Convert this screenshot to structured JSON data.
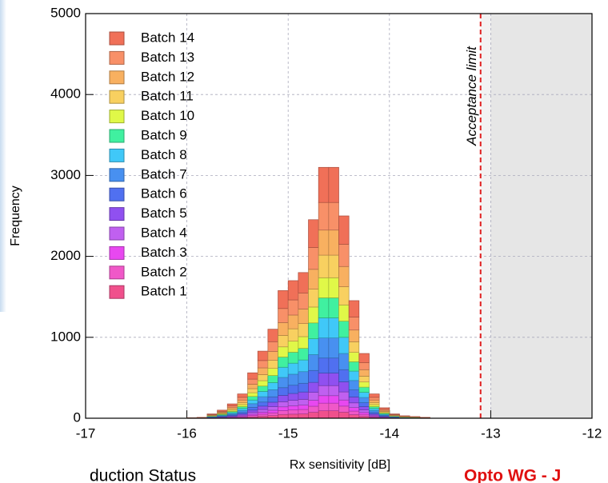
{
  "chart_data": {
    "type": "histogram",
    "xlabel": "Rx sensitivity [dB]",
    "ylabel": "Frequency",
    "xlim": [
      -17,
      -12
    ],
    "xticks": [
      -17,
      -16,
      -15,
      -14,
      -13,
      -12
    ],
    "ylim": [
      0,
      5000
    ],
    "yticks": [
      0,
      1000,
      2000,
      3000,
      4000,
      5000
    ],
    "grid": true,
    "legend": "upper left",
    "bins": [
      -16.0,
      -15.9,
      -15.8,
      -15.7,
      -15.6,
      -15.5,
      -15.4,
      -15.3,
      -15.2,
      -15.1,
      -15.0,
      -14.9,
      -14.8,
      -14.7,
      -14.6,
      -14.5,
      -14.4,
      -14.3,
      -14.2,
      -14.1,
      -14.0,
      -13.9,
      -13.8,
      -13.7,
      -13.6
    ],
    "limit": {
      "value": -13.1,
      "label": "Acceptance limit",
      "color": "#e02020"
    },
    "shade_from": -13,
    "series": [
      {
        "name": "Batch 1",
        "color": "#f0508c",
        "values": [
          0,
          0,
          2,
          3,
          5,
          9,
          17,
          25,
          33,
          47,
          51,
          54,
          74,
          93,
          93,
          75,
          44,
          24,
          9,
          4,
          2,
          1,
          0,
          0
        ]
      },
      {
        "name": "Batch 2",
        "color": "#f058c8",
        "values": [
          0,
          0,
          2,
          3,
          5,
          9,
          17,
          25,
          33,
          47,
          51,
          54,
          74,
          93,
          93,
          75,
          44,
          24,
          9,
          4,
          2,
          1,
          1,
          0
        ]
      },
      {
        "name": "Batch 3",
        "color": "#e848f0",
        "values": [
          0,
          0,
          2,
          3,
          5,
          9,
          17,
          25,
          33,
          47,
          51,
          54,
          74,
          93,
          93,
          75,
          44,
          24,
          9,
          4,
          2,
          1,
          1,
          0
        ]
      },
      {
        "name": "Batch 4",
        "color": "#c060f0",
        "values": [
          0,
          0,
          2,
          4,
          7,
          12,
          22,
          33,
          44,
          63,
          68,
          72,
          98,
          124,
          124,
          100,
          58,
          32,
          12,
          5,
          2,
          1,
          1,
          0
        ]
      },
      {
        "name": "Batch 5",
        "color": "#9050f0",
        "values": [
          0,
          1,
          3,
          5,
          9,
          15,
          28,
          42,
          55,
          79,
          85,
          90,
          123,
          155,
          155,
          125,
          73,
          40,
          15,
          7,
          3,
          2,
          1,
          1
        ]
      },
      {
        "name": "Batch 6",
        "color": "#5070f0",
        "values": [
          0,
          1,
          3,
          6,
          11,
          18,
          34,
          50,
          66,
          95,
          102,
          108,
          147,
          186,
          186,
          150,
          87,
          48,
          18,
          8,
          3,
          2,
          1,
          1
        ]
      },
      {
        "name": "Batch 7",
        "color": "#4890f0",
        "values": [
          1,
          1,
          4,
          8,
          14,
          24,
          45,
          66,
          88,
          126,
          136,
          144,
          196,
          248,
          248,
          200,
          116,
          64,
          24,
          10,
          4,
          2,
          2,
          1
        ]
      },
      {
        "name": "Batch 8",
        "color": "#40c8f8",
        "values": [
          0,
          1,
          4,
          8,
          14,
          24,
          45,
          66,
          88,
          126,
          136,
          144,
          196,
          248,
          248,
          200,
          116,
          64,
          24,
          10,
          4,
          2,
          2,
          1
        ]
      },
      {
        "name": "Batch 9",
        "color": "#40f0a0",
        "values": [
          1,
          1,
          4,
          8,
          14,
          24,
          45,
          66,
          88,
          126,
          136,
          144,
          196,
          248,
          248,
          200,
          116,
          64,
          24,
          10,
          4,
          2,
          2,
          1
        ]
      },
      {
        "name": "Batch 10",
        "color": "#e0f848",
        "values": [
          0,
          1,
          4,
          8,
          14,
          24,
          45,
          66,
          88,
          126,
          136,
          144,
          196,
          248,
          248,
          200,
          116,
          64,
          24,
          10,
          4,
          3,
          2,
          1
        ]
      },
      {
        "name": "Batch 11",
        "color": "#f8d060",
        "values": [
          1,
          1,
          5,
          9,
          16,
          27,
          50,
          75,
          99,
          142,
          153,
          162,
          221,
          279,
          279,
          225,
          131,
          72,
          27,
          12,
          5,
          3,
          2,
          1
        ]
      },
      {
        "name": "Batch 12",
        "color": "#f8b060",
        "values": [
          0,
          1,
          5,
          10,
          18,
          30,
          56,
          83,
          110,
          158,
          170,
          180,
          245,
          310,
          310,
          250,
          145,
          80,
          30,
          13,
          5,
          3,
          2,
          1
        ]
      },
      {
        "name": "Batch 13",
        "color": "#f89068",
        "values": [
          1,
          1,
          6,
          11,
          20,
          33,
          62,
          91,
          121,
          174,
          187,
          198,
          270,
          341,
          341,
          275,
          160,
          88,
          33,
          14,
          6,
          3,
          2,
          1
        ]
      },
      {
        "name": "Batch 14",
        "color": "#f07058",
        "values": [
          1,
          1,
          7,
          14,
          25,
          42,
          78,
          116,
          154,
          221,
          238,
          252,
          343,
          434,
          434,
          350,
          203,
          112,
          42,
          18,
          7,
          4,
          1,
          1
        ]
      }
    ]
  },
  "footer": {
    "left": "duction Status",
    "right": "Opto WG - J"
  }
}
